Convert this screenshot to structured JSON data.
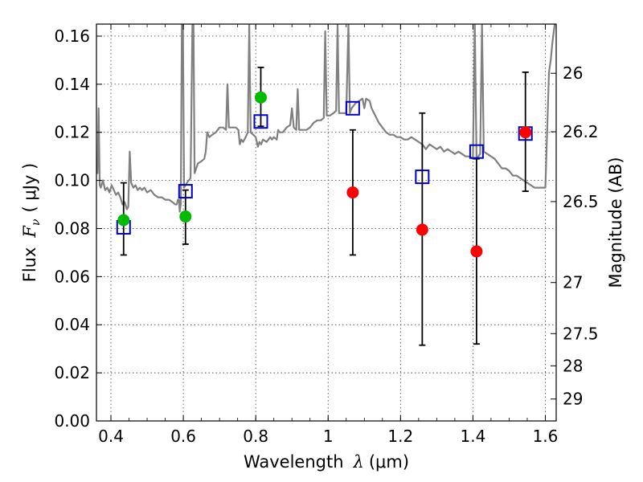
{
  "chart_data": {
    "type": "scatter",
    "xlabel": {
      "prefix": "Wavelength",
      "symbol": "λ",
      "unit": "(μm)"
    },
    "ylabel": {
      "prefix": "Flux",
      "symbol": "F",
      "subscript": "ν",
      "unit": "( μJy )"
    },
    "y2label": "Magnitude (AB)",
    "xlim": [
      0.36,
      1.63
    ],
    "ylim": [
      0.0,
      0.165
    ],
    "grid": true,
    "x_ticks": [
      {
        "value": 0.4,
        "label": "0.4"
      },
      {
        "value": 0.6,
        "label": "0.6"
      },
      {
        "value": 0.8,
        "label": "0.8"
      },
      {
        "value": 1.0,
        "label": "1"
      },
      {
        "value": 1.2,
        "label": "1.2"
      },
      {
        "value": 1.4,
        "label": "1.4"
      },
      {
        "value": 1.6,
        "label": "1.6"
      }
    ],
    "y_ticks": [
      {
        "value": 0.0,
        "label": "0.00"
      },
      {
        "value": 0.02,
        "label": "0.02"
      },
      {
        "value": 0.04,
        "label": "0.04"
      },
      {
        "value": 0.06,
        "label": "0.06"
      },
      {
        "value": 0.08,
        "label": "0.08"
      },
      {
        "value": 0.1,
        "label": "0.10"
      },
      {
        "value": 0.12,
        "label": "0.12"
      },
      {
        "value": 0.14,
        "label": "0.14"
      },
      {
        "value": 0.16,
        "label": "0.16"
      }
    ],
    "y2_ticks": [
      {
        "value": 26.0,
        "label": "26"
      },
      {
        "value": 26.2,
        "label": "26.2"
      },
      {
        "value": 26.5,
        "label": "26.5"
      },
      {
        "value": 27.0,
        "label": "27"
      },
      {
        "value": 27.5,
        "label": "27.5"
      },
      {
        "value": 28.0,
        "label": "28"
      },
      {
        "value": 29.0,
        "label": "29"
      }
    ],
    "series": [
      {
        "kind": "observed_green",
        "color": "#00bb00",
        "points": [
          {
            "x": 0.435,
            "y": 0.0835,
            "yerr": [
              0.069,
              0.099
            ]
          },
          {
            "x": 0.606,
            "y": 0.085,
            "yerr": [
              0.0735,
              0.096
            ]
          },
          {
            "x": 0.814,
            "y": 0.1345,
            "yerr": [
              0.1225,
              0.147
            ]
          }
        ]
      },
      {
        "kind": "observed_red",
        "color": "#ff0000",
        "points": [
          {
            "x": 1.068,
            "y": 0.095,
            "yerr": [
              0.069,
              0.121
            ]
          },
          {
            "x": 1.26,
            "y": 0.0795,
            "yerr": [
              0.0315,
              0.128
            ]
          },
          {
            "x": 1.41,
            "y": 0.0705,
            "yerr": [
              0.032,
              0.109
            ]
          },
          {
            "x": 1.545,
            "y": 0.12,
            "yerr": [
              0.0955,
              0.145
            ]
          }
        ]
      },
      {
        "kind": "model_squares",
        "color": "#0000cc",
        "points": [
          {
            "x": 0.435,
            "y": 0.0805
          },
          {
            "x": 0.606,
            "y": 0.0955
          },
          {
            "x": 0.814,
            "y": 0.1245
          },
          {
            "x": 1.068,
            "y": 0.13
          },
          {
            "x": 1.26,
            "y": 0.1015
          },
          {
            "x": 1.41,
            "y": 0.112
          },
          {
            "x": 1.545,
            "y": 0.1195
          }
        ]
      },
      {
        "kind": "template_spectrum",
        "color": "#808080",
        "points": [
          [
            0.36,
            0.105
          ],
          [
            0.363,
            0.103
          ],
          [
            0.366,
            0.13
          ],
          [
            0.369,
            0.098
          ],
          [
            0.372,
            0.097
          ],
          [
            0.378,
            0.1
          ],
          [
            0.384,
            0.096
          ],
          [
            0.39,
            0.097
          ],
          [
            0.396,
            0.095
          ],
          [
            0.402,
            0.098
          ],
          [
            0.408,
            0.096
          ],
          [
            0.414,
            0.094
          ],
          [
            0.42,
            0.095
          ],
          [
            0.426,
            0.093
          ],
          [
            0.432,
            0.09
          ],
          [
            0.438,
            0.091
          ],
          [
            0.444,
            0.088
          ],
          [
            0.448,
            0.089
          ],
          [
            0.452,
            0.112
          ],
          [
            0.456,
            0.099
          ],
          [
            0.462,
            0.097
          ],
          [
            0.468,
            0.098
          ],
          [
            0.474,
            0.096
          ],
          [
            0.48,
            0.097
          ],
          [
            0.486,
            0.096
          ],
          [
            0.492,
            0.097
          ],
          [
            0.5,
            0.095
          ],
          [
            0.51,
            0.096
          ],
          [
            0.52,
            0.094
          ],
          [
            0.53,
            0.093
          ],
          [
            0.54,
            0.093
          ],
          [
            0.55,
            0.092
          ],
          [
            0.56,
            0.092
          ],
          [
            0.57,
            0.091
          ],
          [
            0.578,
            0.09
          ],
          [
            0.582,
            0.09
          ],
          [
            0.585,
            0.092
          ],
          [
            0.588,
            0.092
          ],
          [
            0.59,
            0.087
          ],
          [
            0.593,
            0.09
          ],
          [
            0.596,
            0.165
          ],
          [
            0.599,
            0.165
          ],
          [
            0.602,
            0.097
          ],
          [
            0.61,
            0.099
          ],
          [
            0.62,
            0.101
          ],
          [
            0.625,
            0.165
          ],
          [
            0.628,
            0.165
          ],
          [
            0.631,
            0.103
          ],
          [
            0.64,
            0.107
          ],
          [
            0.65,
            0.108
          ],
          [
            0.658,
            0.109
          ],
          [
            0.662,
            0.112
          ],
          [
            0.666,
            0.12
          ],
          [
            0.672,
            0.118
          ],
          [
            0.68,
            0.119
          ],
          [
            0.69,
            0.12
          ],
          [
            0.7,
            0.122
          ],
          [
            0.71,
            0.122
          ],
          [
            0.718,
            0.121
          ],
          [
            0.722,
            0.14
          ],
          [
            0.726,
            0.122
          ],
          [
            0.735,
            0.122
          ],
          [
            0.745,
            0.122
          ],
          [
            0.752,
            0.121
          ],
          [
            0.756,
            0.115
          ],
          [
            0.76,
            0.117
          ],
          [
            0.765,
            0.116
          ],
          [
            0.772,
            0.118
          ],
          [
            0.778,
            0.12
          ],
          [
            0.782,
            0.165
          ],
          [
            0.786,
            0.12
          ],
          [
            0.793,
            0.119
          ],
          [
            0.8,
            0.118
          ],
          [
            0.806,
            0.114
          ],
          [
            0.81,
            0.116
          ],
          [
            0.815,
            0.115
          ],
          [
            0.82,
            0.117
          ],
          [
            0.83,
            0.116
          ],
          [
            0.84,
            0.118
          ],
          [
            0.845,
            0.117
          ],
          [
            0.85,
            0.118
          ],
          [
            0.858,
            0.117
          ],
          [
            0.862,
            0.121
          ],
          [
            0.866,
            0.12
          ],
          [
            0.875,
            0.12
          ],
          [
            0.885,
            0.122
          ],
          [
            0.895,
            0.123
          ],
          [
            0.9,
            0.13
          ],
          [
            0.905,
            0.122
          ],
          [
            0.912,
            0.121
          ],
          [
            0.916,
            0.138
          ],
          [
            0.92,
            0.121
          ],
          [
            0.93,
            0.121
          ],
          [
            0.94,
            0.121
          ],
          [
            0.95,
            0.122
          ],
          [
            0.96,
            0.124
          ],
          [
            0.97,
            0.125
          ],
          [
            0.98,
            0.125
          ],
          [
            0.988,
            0.126
          ],
          [
            0.992,
            0.162
          ],
          [
            0.996,
            0.127
          ],
          [
            1.005,
            0.127
          ],
          [
            1.015,
            0.128
          ],
          [
            1.022,
            0.129
          ],
          [
            1.026,
            0.165
          ],
          [
            1.03,
            0.128
          ],
          [
            1.04,
            0.128
          ],
          [
            1.05,
            0.128
          ],
          [
            1.056,
            0.165
          ],
          [
            1.06,
            0.128
          ],
          [
            1.065,
            0.13
          ],
          [
            1.075,
            0.132
          ],
          [
            1.085,
            0.133
          ],
          [
            1.095,
            0.134
          ],
          [
            1.1,
            0.13
          ],
          [
            1.105,
            0.134
          ],
          [
            1.115,
            0.133
          ],
          [
            1.12,
            0.13
          ],
          [
            1.13,
            0.127
          ],
          [
            1.14,
            0.124
          ],
          [
            1.15,
            0.122
          ],
          [
            1.16,
            0.12
          ],
          [
            1.17,
            0.119
          ],
          [
            1.18,
            0.119
          ],
          [
            1.19,
            0.118
          ],
          [
            1.2,
            0.118
          ],
          [
            1.21,
            0.117
          ],
          [
            1.22,
            0.117
          ],
          [
            1.23,
            0.118
          ],
          [
            1.24,
            0.117
          ],
          [
            1.25,
            0.116
          ],
          [
            1.26,
            0.115
          ],
          [
            1.27,
            0.113
          ],
          [
            1.28,
            0.115
          ],
          [
            1.29,
            0.114
          ],
          [
            1.3,
            0.113
          ],
          [
            1.31,
            0.114
          ],
          [
            1.32,
            0.112
          ],
          [
            1.33,
            0.113
          ],
          [
            1.34,
            0.112
          ],
          [
            1.35,
            0.111
          ],
          [
            1.36,
            0.112
          ],
          [
            1.37,
            0.111
          ],
          [
            1.38,
            0.11
          ],
          [
            1.39,
            0.11
          ],
          [
            1.4,
            0.109
          ],
          [
            1.405,
            0.165
          ],
          [
            1.41,
            0.109
          ],
          [
            1.42,
            0.111
          ],
          [
            1.425,
            0.165
          ],
          [
            1.43,
            0.112
          ],
          [
            1.44,
            0.111
          ],
          [
            1.45,
            0.11
          ],
          [
            1.46,
            0.109
          ],
          [
            1.47,
            0.107
          ],
          [
            1.48,
            0.105
          ],
          [
            1.49,
            0.105
          ],
          [
            1.5,
            0.104
          ],
          [
            1.51,
            0.102
          ],
          [
            1.52,
            0.102
          ],
          [
            1.53,
            0.101
          ],
          [
            1.54,
            0.1
          ],
          [
            1.55,
            0.099
          ],
          [
            1.56,
            0.098
          ],
          [
            1.57,
            0.097
          ],
          [
            1.58,
            0.097
          ],
          [
            1.59,
            0.097
          ],
          [
            1.6,
            0.097
          ],
          [
            1.605,
            0.12
          ],
          [
            1.61,
            0.145
          ],
          [
            1.615,
            0.15
          ],
          [
            1.62,
            0.158
          ],
          [
            1.626,
            0.165
          ]
        ]
      }
    ]
  }
}
